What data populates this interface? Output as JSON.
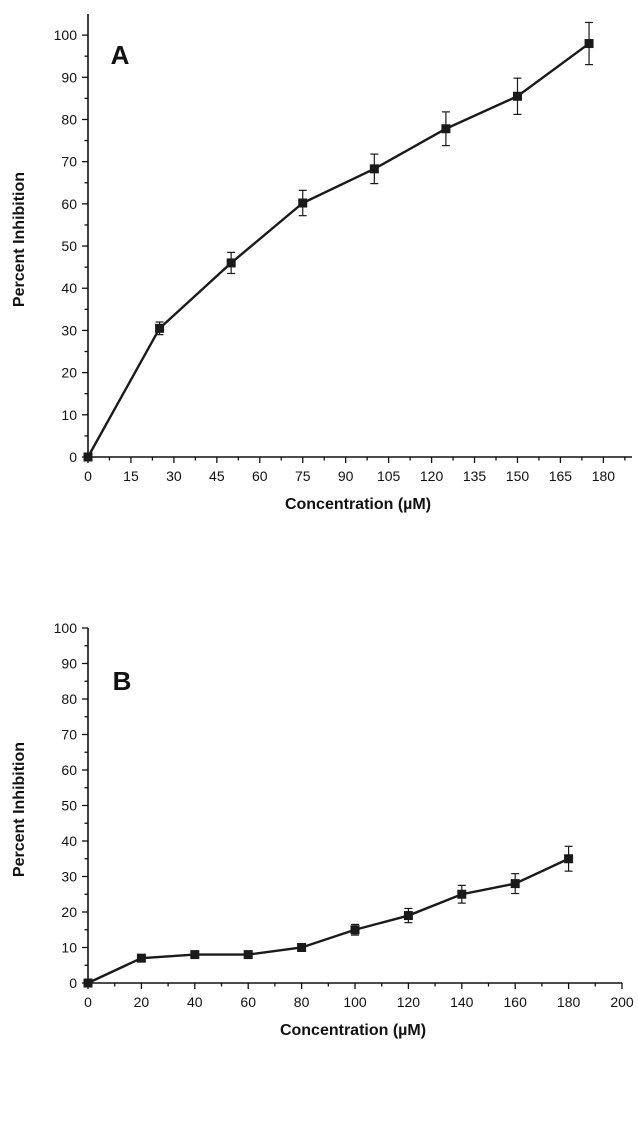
{
  "chart_data": [
    {
      "type": "line",
      "panel_label": "A",
      "xlabel": "Concentration (µM)",
      "ylabel": "Percent Inhibition",
      "xlim": [
        0,
        190
      ],
      "ylim": [
        0,
        105
      ],
      "xticks": [
        0,
        15,
        30,
        45,
        60,
        75,
        90,
        105,
        120,
        135,
        150,
        165,
        180
      ],
      "yticks": [
        0,
        10,
        20,
        30,
        40,
        50,
        60,
        70,
        80,
        90,
        100
      ],
      "grid": false,
      "series": [
        {
          "x": [
            0,
            25,
            50,
            75,
            100,
            125,
            150,
            175
          ],
          "y": [
            0,
            30.5,
            46,
            60.2,
            68.3,
            77.8,
            85.5,
            98
          ],
          "err": [
            0,
            1.5,
            2.5,
            3,
            3.5,
            4,
            4.3,
            5
          ],
          "color": "#1a1a1a"
        }
      ]
    },
    {
      "type": "line",
      "panel_label": "B",
      "xlabel": "Concentration (µM)",
      "ylabel": "Percent Inhibition",
      "xlim": [
        0,
        200
      ],
      "ylim": [
        0,
        100
      ],
      "xticks": [
        0,
        20,
        40,
        60,
        80,
        100,
        120,
        140,
        160,
        180,
        200
      ],
      "yticks": [
        0,
        10,
        20,
        30,
        40,
        50,
        60,
        70,
        80,
        90,
        100
      ],
      "grid": false,
      "series": [
        {
          "x": [
            0,
            20,
            40,
            60,
            80,
            100,
            120,
            140,
            160,
            180
          ],
          "y": [
            0,
            7,
            8,
            8,
            10,
            15,
            19,
            25,
            28,
            35
          ],
          "err": [
            0,
            0,
            0,
            0,
            0,
            1.5,
            2,
            2.5,
            2.8,
            3.5
          ],
          "color": "#1a1a1a"
        }
      ]
    }
  ]
}
